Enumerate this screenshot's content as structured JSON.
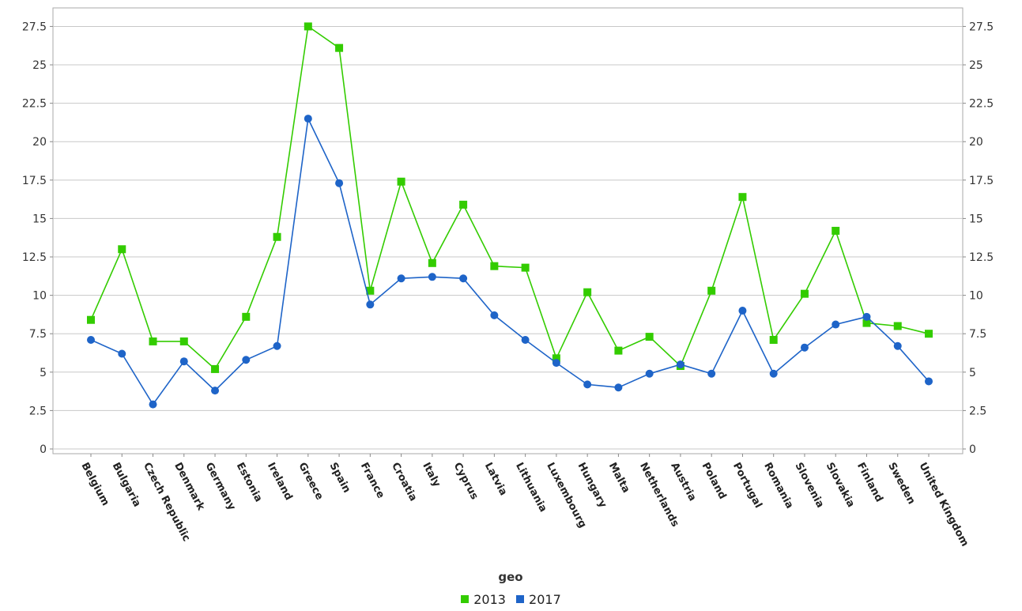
{
  "chart_data": {
    "type": "line",
    "title": "",
    "xlabel": "geo",
    "ylabel": "",
    "ylim": [
      0,
      28.5
    ],
    "yticks": [
      0,
      2.5,
      5,
      7.5,
      10,
      12.5,
      15,
      17.5,
      20,
      22.5,
      25,
      27.5
    ],
    "ytick_labels": [
      "0",
      "2.5",
      "5",
      "7.5",
      "10",
      "12.5",
      "15",
      "17.5",
      "20",
      "22.5",
      "25",
      "27.5"
    ],
    "grid": true,
    "legend_position": "bottom-center",
    "categories": [
      "Belgium",
      "Bulgaria",
      "Czech Republic",
      "Denmark",
      "Germany",
      "Estonia",
      "Ireland",
      "Greece",
      "Spain",
      "France",
      "Croatia",
      "Italy",
      "Cyprus",
      "Latvia",
      "Lithuania",
      "Luxembourg",
      "Hungary",
      "Malta",
      "Netherlands",
      "Austria",
      "Poland",
      "Portugal",
      "Romania",
      "Slovenia",
      "Slovakia",
      "Finland",
      "Sweden",
      "United Kingdom"
    ],
    "series": [
      {
        "name": "2013",
        "color": "#33cc00",
        "marker": "square",
        "values": [
          8.4,
          13.0,
          7.0,
          7.0,
          5.2,
          8.6,
          13.8,
          27.5,
          26.1,
          10.3,
          17.4,
          12.1,
          15.9,
          11.9,
          11.8,
          5.9,
          10.2,
          6.4,
          7.3,
          5.4,
          10.3,
          16.4,
          7.1,
          10.1,
          14.2,
          8.2,
          8.0,
          7.5
        ]
      },
      {
        "name": "2017",
        "color": "#1e64c8",
        "marker": "circle",
        "values": [
          7.1,
          6.2,
          2.9,
          5.7,
          3.8,
          5.8,
          6.7,
          21.5,
          17.3,
          9.4,
          11.1,
          11.2,
          11.1,
          8.7,
          7.1,
          5.6,
          4.2,
          4.0,
          4.9,
          5.5,
          4.9,
          9.0,
          4.9,
          6.6,
          8.1,
          8.6,
          6.7,
          4.4
        ]
      }
    ]
  }
}
